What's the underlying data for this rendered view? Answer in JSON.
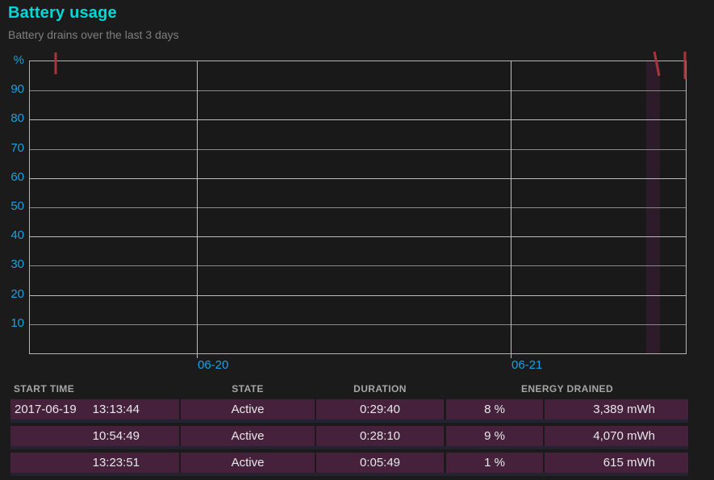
{
  "header": {
    "title": "Battery usage",
    "subtitle": "Battery drains over the last 3 days"
  },
  "colors": {
    "bg": "#1b1b1b",
    "title": "#00d7d7",
    "subtitle": "#7f7f7f",
    "axis": "#1ba1e2",
    "grid_major": "#bdbdbd",
    "grid_minor": "#8a8a8a",
    "plot_border": "#b4b4b4",
    "plot_bg": "#191919",
    "drain": "#a8343c",
    "band": "rgba(120,35,100,0.22)",
    "row_bg": "#45213b",
    "row_sep": "#232331",
    "head_text": "#a6a6a6",
    "cell_text": "#e8e8e8"
  },
  "chart_data": {
    "type": "line",
    "title": "Battery usage",
    "xlabel": "",
    "ylabel": "%",
    "ylim": [
      0,
      100
    ],
    "grid": true,
    "y_ticks": [
      90,
      80,
      70,
      60,
      50,
      40,
      30,
      20,
      10
    ],
    "x_ticks": [
      {
        "label": "06-20",
        "frac": 0.2546
      },
      {
        "label": "06-21",
        "frac": 0.7331
      }
    ],
    "highlight_band": {
      "x1_frac": 0.9397,
      "x2_frac": 0.9606
    },
    "drain_marks": [
      {
        "start": "2017-06-19 13:13:44",
        "drop_pct": 8,
        "x1_frac": 0.0406,
        "y1_frac": -0.0276,
        "x2_frac": 0.0406,
        "y2_frac": 0.047
      },
      {
        "start": "2017-06-21 10:54:49",
        "drop_pct": 9,
        "x1_frac": 0.9533,
        "y1_frac": -0.0304,
        "x2_frac": 0.9606,
        "y2_frac": 0.0525
      },
      {
        "start": "2017-06-21 13:23:51",
        "drop_pct": 1,
        "x1_frac": 1.0,
        "y1_frac": -0.0304,
        "x2_frac": 1.0,
        "y2_frac": 0.0635
      }
    ]
  },
  "table": {
    "headers": {
      "start_time": "START TIME",
      "state": "STATE",
      "duration": "DURATION",
      "energy": "ENERGY DRAINED"
    },
    "rows": [
      {
        "date": "2017-06-19",
        "time": "13:13:44",
        "state": "Active",
        "duration": "0:29:40",
        "percent": "8 %",
        "energy": "3,389 mWh"
      },
      {
        "date": "",
        "time": "10:54:49",
        "state": "Active",
        "duration": "0:28:10",
        "percent": "9 %",
        "energy": "4,070 mWh"
      },
      {
        "date": "",
        "time": "13:23:51",
        "state": "Active",
        "duration": "0:05:49",
        "percent": "1 %",
        "energy": "615 mWh"
      }
    ]
  }
}
